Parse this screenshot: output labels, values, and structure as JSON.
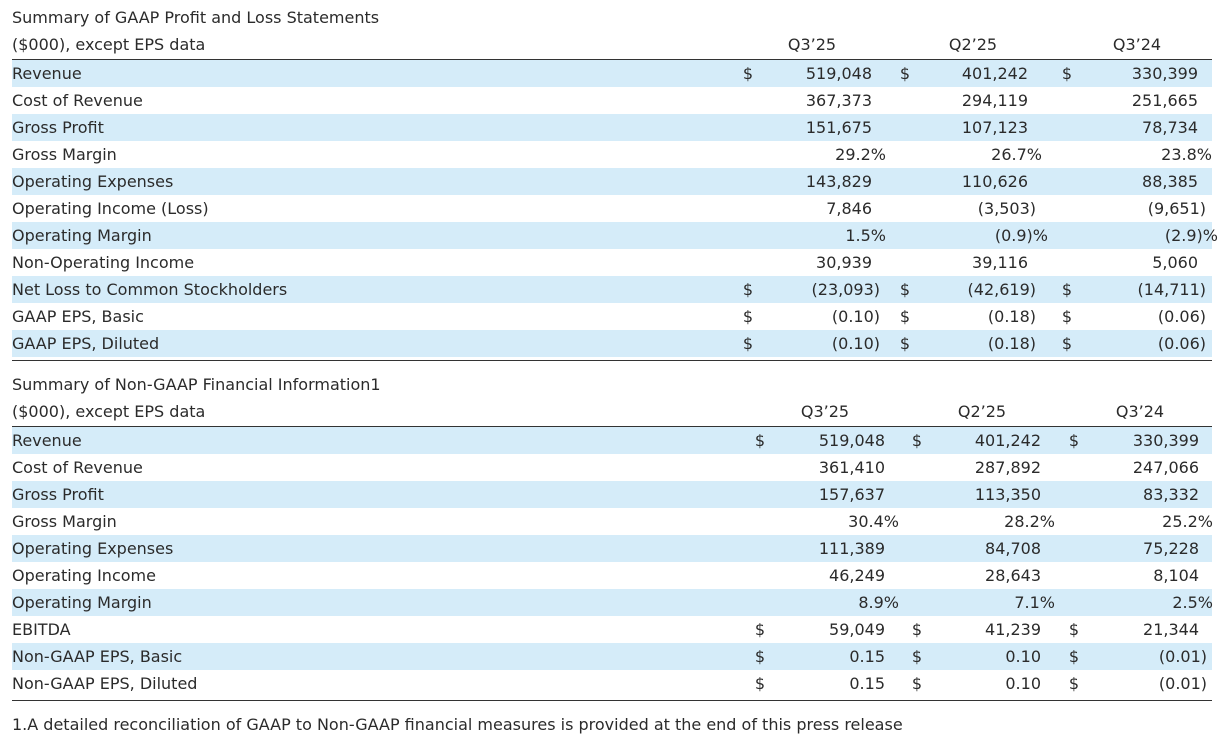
{
  "tables": [
    {
      "title": "Summary of GAAP Profit and Loss Statements",
      "unit_label": "($000), except EPS data",
      "columns": [
        "Q3’25",
        "Q2’25",
        "Q3’24"
      ],
      "rows": [
        {
          "label": "Revenue",
          "cells": [
            {
              "currency": "$",
              "value": "519,048"
            },
            {
              "currency": "$",
              "value": "401,242"
            },
            {
              "currency": "$",
              "value": "330,399"
            }
          ]
        },
        {
          "label": "Cost of Revenue",
          "cells": [
            {
              "value": "367,373"
            },
            {
              "value": "294,119"
            },
            {
              "value": "251,665"
            }
          ]
        },
        {
          "label": "Gross Profit",
          "cells": [
            {
              "value": "151,675"
            },
            {
              "value": "107,123"
            },
            {
              "value": "78,734"
            }
          ]
        },
        {
          "label": "Gross Margin",
          "cells": [
            {
              "value": "29.2%"
            },
            {
              "value": "26.7%"
            },
            {
              "value": "23.8%"
            }
          ]
        },
        {
          "label": "Operating Expenses",
          "cells": [
            {
              "value": "143,829"
            },
            {
              "value": "110,626"
            },
            {
              "value": "88,385"
            }
          ]
        },
        {
          "label": "Operating Income (Loss)",
          "cells": [
            {
              "value": "7,846"
            },
            {
              "value": "(3,503)"
            },
            {
              "value": "(9,651)"
            }
          ]
        },
        {
          "label": "Operating Margin",
          "cells": [
            {
              "value": "1.5%"
            },
            {
              "value": "(0.9)%"
            },
            {
              "value": "(2.9)%"
            }
          ]
        },
        {
          "label": "Non-Operating Income",
          "cells": [
            {
              "value": "30,939"
            },
            {
              "value": "39,116"
            },
            {
              "value": "5,060"
            }
          ]
        },
        {
          "label": "Net Loss to Common Stockholders",
          "cells": [
            {
              "currency": "$",
              "value": "(23,093)"
            },
            {
              "currency": "$",
              "value": "(42,619)"
            },
            {
              "currency": "$",
              "value": "(14,711)"
            }
          ]
        },
        {
          "label": "GAAP EPS, Basic",
          "cells": [
            {
              "currency": "$",
              "value": "(0.10)"
            },
            {
              "currency": "$",
              "value": "(0.18)"
            },
            {
              "currency": "$",
              "value": "(0.06)"
            }
          ]
        },
        {
          "label": "GAAP EPS, Diluted",
          "cells": [
            {
              "currency": "$",
              "value": "(0.10)"
            },
            {
              "currency": "$",
              "value": "(0.18)"
            },
            {
              "currency": "$",
              "value": "(0.06)"
            }
          ]
        }
      ]
    },
    {
      "title": "Summary of Non-GAAP Financial Information1",
      "unit_label": "($000), except EPS data",
      "columns": [
        "Q3’25",
        "Q2’25",
        "Q3’24"
      ],
      "rows": [
        {
          "label": "Revenue",
          "cells": [
            {
              "currency": "$",
              "value": "519,048"
            },
            {
              "currency": "$",
              "value": "401,242"
            },
            {
              "currency": "$",
              "value": "330,399"
            }
          ]
        },
        {
          "label": "Cost of Revenue",
          "cells": [
            {
              "value": "361,410"
            },
            {
              "value": "287,892"
            },
            {
              "value": "247,066"
            }
          ]
        },
        {
          "label": "Gross Profit",
          "cells": [
            {
              "value": "157,637"
            },
            {
              "value": "113,350"
            },
            {
              "value": "83,332"
            }
          ]
        },
        {
          "label": "Gross Margin",
          "cells": [
            {
              "value": "30.4%"
            },
            {
              "value": "28.2%"
            },
            {
              "value": "25.2%"
            }
          ]
        },
        {
          "label": "Operating Expenses",
          "cells": [
            {
              "value": "111,389"
            },
            {
              "value": "84,708"
            },
            {
              "value": "75,228"
            }
          ]
        },
        {
          "label": "Operating Income",
          "cells": [
            {
              "value": "46,249"
            },
            {
              "value": "28,643"
            },
            {
              "value": "8,104"
            }
          ]
        },
        {
          "label": "Operating Margin",
          "cells": [
            {
              "value": "8.9%"
            },
            {
              "value": "7.1%"
            },
            {
              "value": "2.5%"
            }
          ]
        },
        {
          "label": "EBITDA",
          "cells": [
            {
              "currency": "$",
              "value": "59,049"
            },
            {
              "currency": "$",
              "value": "41,239"
            },
            {
              "currency": "$",
              "value": "21,344"
            }
          ]
        },
        {
          "label": "Non-GAAP EPS, Basic",
          "cells": [
            {
              "currency": "$",
              "value": "0.15"
            },
            {
              "currency": "$",
              "value": "0.10"
            },
            {
              "currency": "$",
              "value": "(0.01)"
            }
          ]
        },
        {
          "label": "Non-GAAP EPS, Diluted",
          "cells": [
            {
              "currency": "$",
              "value": "0.15"
            },
            {
              "currency": "$",
              "value": "0.10"
            },
            {
              "currency": "$",
              "value": "(0.01)"
            }
          ]
        }
      ]
    }
  ],
  "footnote": "1.A detailed reconciliation of GAAP to Non-GAAP financial measures is provided at the end of this press release"
}
